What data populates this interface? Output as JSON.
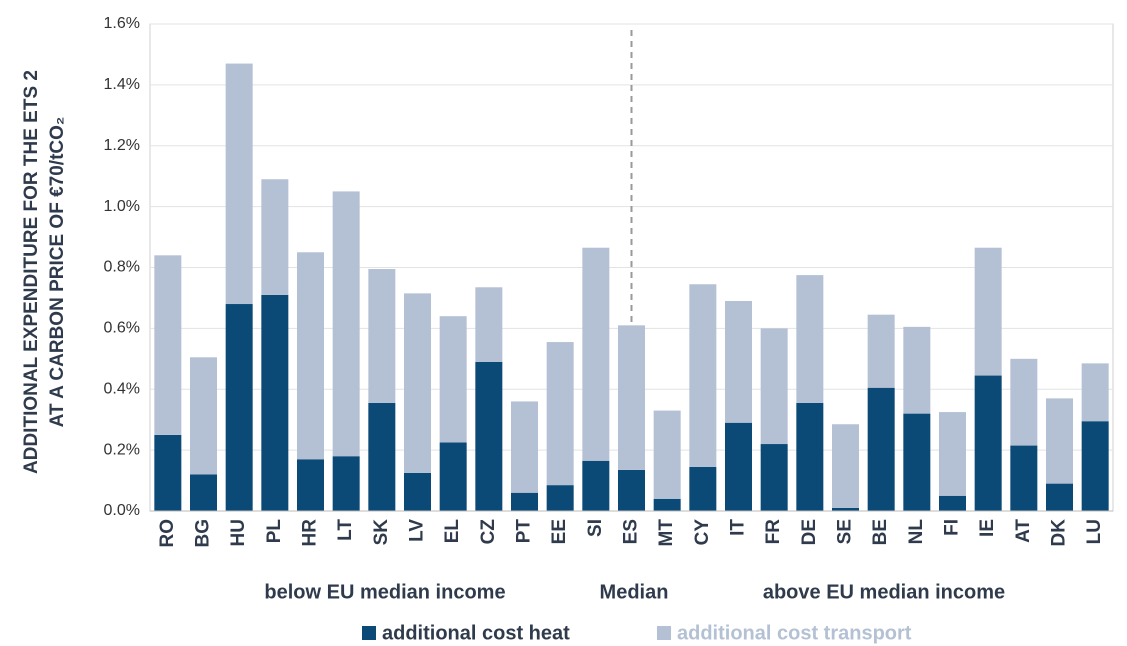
{
  "chart_data": {
    "type": "stacked_bar",
    "y_label_lines": [
      "ADDITIONAL EXPENDITURE FOR THE ETS 2",
      "AT A CARBON PRICE OF €70/tCO₂"
    ],
    "categories": [
      "RO",
      "BG",
      "HU",
      "PL",
      "HR",
      "LT",
      "SK",
      "LV",
      "EL",
      "CZ",
      "PT",
      "EE",
      "SI",
      "ES",
      "MT",
      "CY",
      "IT",
      "FR",
      "DE",
      "SE",
      "BE",
      "NL",
      "FI",
      "IE",
      "AT",
      "DK",
      "LU"
    ],
    "series": [
      {
        "name": "additional cost heat",
        "color": "#0b4a77",
        "values": [
          0.25,
          0.12,
          0.68,
          0.71,
          0.17,
          0.18,
          0.355,
          0.125,
          0.225,
          0.49,
          0.06,
          0.085,
          0.165,
          0.135,
          0.04,
          0.145,
          0.29,
          0.22,
          0.355,
          0.01,
          0.405,
          0.32,
          0.05,
          0.445,
          0.215,
          0.09,
          0.295
        ]
      },
      {
        "name": "additional cost transport",
        "color": "#b4c1d4",
        "values": [
          0.59,
          0.385,
          0.79,
          0.38,
          0.68,
          0.87,
          0.44,
          0.59,
          0.415,
          0.245,
          0.3,
          0.47,
          0.7,
          0.475,
          0.29,
          0.6,
          0.4,
          0.38,
          0.42,
          0.275,
          0.24,
          0.285,
          0.275,
          0.42,
          0.285,
          0.28,
          0.19
        ]
      }
    ],
    "ylim": [
      0,
      1.6
    ],
    "yticks": [
      {
        "value": 0,
        "label": "0.0%"
      },
      {
        "value": 0.2,
        "label": "0.2%"
      },
      {
        "value": 0.4,
        "label": "0.4%"
      },
      {
        "value": 0.6,
        "label": "0.6%"
      },
      {
        "value": 0.8,
        "label": "0.8%"
      },
      {
        "value": 1.0,
        "label": "1.0%"
      },
      {
        "value": 1.2,
        "label": "1.2%"
      },
      {
        "value": 1.4,
        "label": "1.4%"
      },
      {
        "value": 1.6,
        "label": "1.6%"
      }
    ],
    "grid": true,
    "median_category": "ES",
    "annotations": [
      "below EU median income",
      "Median",
      "above EU median income"
    ]
  }
}
